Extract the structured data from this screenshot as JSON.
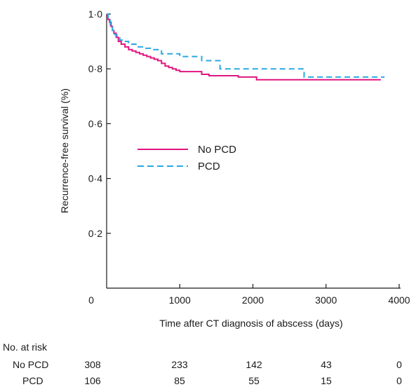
{
  "chart_data": {
    "type": "line",
    "title": "",
    "xlabel": "Time after CT diagnosis of abscess (days)",
    "ylabel": "Recurrence-free survival (%)",
    "xlim": [
      0,
      4000
    ],
    "ylim": [
      0,
      1.0
    ],
    "x_ticks": [
      {
        "value": 0,
        "label": "0"
      },
      {
        "value": 1000,
        "label": "1000"
      },
      {
        "value": 2000,
        "label": "2000"
      },
      {
        "value": 3000,
        "label": "3000"
      },
      {
        "value": 4000,
        "label": "4000"
      }
    ],
    "y_ticks": [
      {
        "value": 0.2,
        "label": "0·2"
      },
      {
        "value": 0.4,
        "label": "0·4"
      },
      {
        "value": 0.6,
        "label": "0·6"
      },
      {
        "value": 0.8,
        "label": "0·8"
      },
      {
        "value": 1.0,
        "label": "1·0"
      }
    ],
    "grid": false,
    "legend_position": "center-left",
    "series": [
      {
        "name": "No PCD",
        "color": "#e0167f",
        "dash": "solid",
        "points": [
          [
            0,
            1.0
          ],
          [
            10,
            0.99
          ],
          [
            20,
            0.98
          ],
          [
            40,
            0.97
          ],
          [
            60,
            0.955
          ],
          [
            80,
            0.94
          ],
          [
            100,
            0.93
          ],
          [
            130,
            0.915
          ],
          [
            160,
            0.9
          ],
          [
            200,
            0.89
          ],
          [
            250,
            0.88
          ],
          [
            300,
            0.87
          ],
          [
            350,
            0.865
          ],
          [
            400,
            0.86
          ],
          [
            450,
            0.855
          ],
          [
            500,
            0.85
          ],
          [
            550,
            0.845
          ],
          [
            600,
            0.84
          ],
          [
            650,
            0.835
          ],
          [
            700,
            0.83
          ],
          [
            750,
            0.82
          ],
          [
            800,
            0.81
          ],
          [
            850,
            0.805
          ],
          [
            900,
            0.8
          ],
          [
            950,
            0.795
          ],
          [
            1000,
            0.79
          ],
          [
            1100,
            0.79
          ],
          [
            1200,
            0.79
          ],
          [
            1300,
            0.78
          ],
          [
            1400,
            0.775
          ],
          [
            1500,
            0.775
          ],
          [
            1700,
            0.775
          ],
          [
            1800,
            0.77
          ],
          [
            2000,
            0.77
          ],
          [
            2050,
            0.76
          ],
          [
            3000,
            0.76
          ],
          [
            3750,
            0.76
          ]
        ]
      },
      {
        "name": "PCD",
        "color": "#29a9e1",
        "dash": "dashed",
        "points": [
          [
            0,
            1.0
          ],
          [
            20,
            0.98
          ],
          [
            50,
            0.96
          ],
          [
            80,
            0.94
          ],
          [
            110,
            0.925
          ],
          [
            140,
            0.915
          ],
          [
            180,
            0.905
          ],
          [
            230,
            0.9
          ],
          [
            300,
            0.89
          ],
          [
            400,
            0.88
          ],
          [
            500,
            0.875
          ],
          [
            600,
            0.87
          ],
          [
            700,
            0.865
          ],
          [
            750,
            0.855
          ],
          [
            900,
            0.855
          ],
          [
            1000,
            0.845
          ],
          [
            1200,
            0.845
          ],
          [
            1300,
            0.83
          ],
          [
            1500,
            0.83
          ],
          [
            1550,
            0.8
          ],
          [
            2650,
            0.8
          ],
          [
            2700,
            0.77
          ],
          [
            3800,
            0.77
          ]
        ]
      }
    ]
  },
  "risk_table": {
    "title": "No. at risk",
    "rows": [
      {
        "label": "No PCD",
        "counts": [
          "308",
          "233",
          "142",
          "43",
          "0"
        ]
      },
      {
        "label": "PCD",
        "counts": [
          "106",
          "85",
          "55",
          "15",
          "0"
        ]
      }
    ]
  }
}
